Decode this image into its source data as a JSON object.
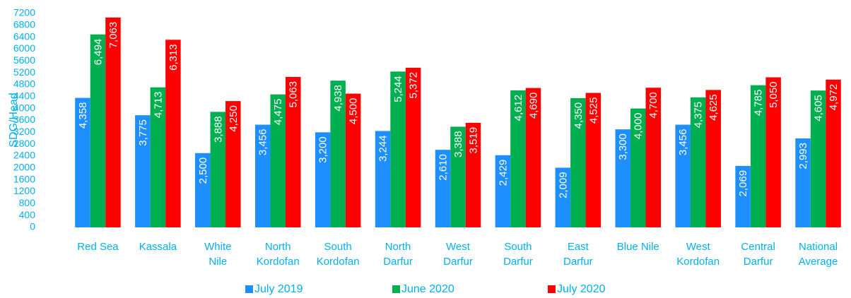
{
  "chart_data": {
    "type": "bar",
    "y_label": "SDG/Head",
    "categories": [
      "Red Sea",
      "Kassala",
      "White\nNile",
      "North\nKordofan",
      "South\nKordofan",
      "North\nDarfur",
      "West\nDarfur",
      "South\nDarfur",
      "East\nDarfur",
      "Blue Nile",
      "West\nKordofan",
      "Central\nDarfur",
      "National\nAverage"
    ],
    "series": [
      {
        "name": "July 2019",
        "color": "#1E8FFF",
        "values": [
          4358,
          3775,
          2500,
          3456,
          3200,
          3244,
          2610,
          2429,
          2009,
          3300,
          3456,
          2069,
          2993
        ],
        "value_labels": [
          "4,358",
          "3,775",
          "2,500",
          "3,456",
          "3,200",
          "3,244",
          "2,610",
          "2,429",
          "2,009",
          "3,300",
          "3,456",
          "2,069",
          "2,993"
        ]
      },
      {
        "name": "June 2020",
        "color": "#00B050",
        "values": [
          6494,
          4713,
          3888,
          4475,
          4938,
          5244,
          3388,
          4612,
          4350,
          4000,
          4375,
          4785,
          4605
        ],
        "value_labels": [
          "6,494",
          "4,713",
          "3,888",
          "4,475",
          "4,938",
          "5,244",
          "3,388",
          "4,612",
          "4,350",
          "4,000",
          "4,375",
          "4,785",
          "4,605"
        ]
      },
      {
        "name": "July 2020",
        "color": "#FF0000",
        "values": [
          7063,
          6313,
          4250,
          5063,
          4500,
          5372,
          3519,
          4690,
          4525,
          4700,
          4625,
          5050,
          4972
        ],
        "value_labels": [
          "7,063",
          "6,313",
          "4,250",
          "5,063",
          "4,500",
          "5,372",
          "3,519",
          "4,690",
          "4,525",
          "4,700",
          "4,625",
          "5,050",
          "4,972"
        ]
      }
    ],
    "ylim": [
      0,
      7200
    ],
    "yticks": [
      0,
      400,
      800,
      1200,
      1600,
      2000,
      2400,
      2800,
      3200,
      3600,
      4000,
      4400,
      4800,
      5200,
      5600,
      6000,
      6400,
      6800,
      7200
    ],
    "grid": false,
    "legend": "bottom"
  }
}
